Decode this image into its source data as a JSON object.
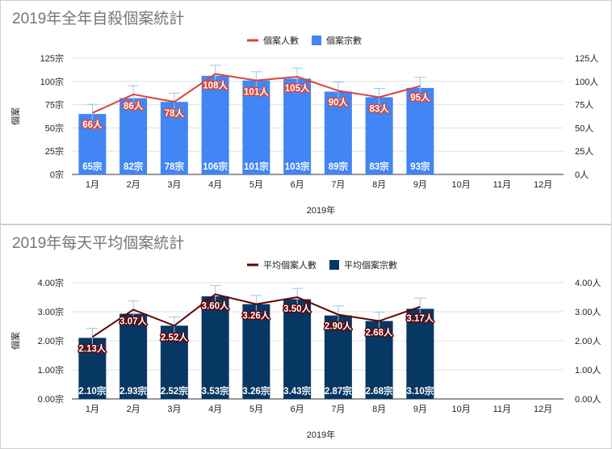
{
  "chart_data": [
    {
      "type": "bar",
      "title": "2019年全年自殺個案統計",
      "xlabel": "2019年",
      "ylabel": "個案",
      "categories": [
        "1月",
        "2月",
        "3月",
        "4月",
        "5月",
        "6月",
        "7月",
        "8月",
        "9月",
        "10月",
        "11月",
        "12月"
      ],
      "ylim": [
        0,
        125
      ],
      "yticks_left": [
        "0宗",
        "25宗",
        "50宗",
        "75宗",
        "100宗",
        "125宗"
      ],
      "yticks_right": [
        "0人",
        "25人",
        "50人",
        "75人",
        "100人",
        "125人"
      ],
      "legend_position": "top",
      "grid": true,
      "series": [
        {
          "name": "個案宗數",
          "kind": "bar",
          "color": "#4285f4",
          "values": [
            65,
            82,
            78,
            106,
            101,
            103,
            89,
            83,
            93,
            null,
            null,
            null
          ],
          "labels": [
            "65宗",
            "82宗",
            "78宗",
            "106宗",
            "101宗",
            "103宗",
            "89宗",
            "83宗",
            "93宗",
            "",
            "",
            ""
          ]
        },
        {
          "name": "個案人數",
          "kind": "line",
          "color": "#db4437",
          "values": [
            66,
            86,
            78,
            108,
            101,
            105,
            90,
            83,
            95,
            null,
            null,
            null
          ],
          "labels": [
            "66人",
            "86人",
            "78人",
            "108人",
            "101人",
            "105人",
            "90人",
            "83人",
            "95人",
            "",
            "",
            ""
          ]
        }
      ]
    },
    {
      "type": "bar",
      "title": "2019年每天平均個案統計",
      "xlabel": "2019年",
      "ylabel": "個案",
      "categories": [
        "1月",
        "2月",
        "3月",
        "4月",
        "5月",
        "6月",
        "7月",
        "8月",
        "9月",
        "10月",
        "11月",
        "12月"
      ],
      "ylim": [
        0,
        4
      ],
      "yticks_left": [
        "0.00宗",
        "1.00宗",
        "2.00宗",
        "3.00宗",
        "4.00宗"
      ],
      "yticks_right": [
        "0.00人",
        "1.00人",
        "2.00人",
        "3.00人",
        "4.00人"
      ],
      "legend_position": "top",
      "grid": true,
      "series": [
        {
          "name": "平均個案宗數",
          "kind": "bar",
          "color": "#073763",
          "values": [
            2.1,
            2.93,
            2.52,
            3.53,
            3.26,
            3.43,
            2.87,
            2.68,
            3.1,
            null,
            null,
            null
          ],
          "labels": [
            "2.10宗",
            "2.93宗",
            "2.52宗",
            "3.53宗",
            "3.26宗",
            "3.43宗",
            "2.87宗",
            "2.68宗",
            "3.10宗",
            "",
            "",
            ""
          ]
        },
        {
          "name": "平均個案人數",
          "kind": "line",
          "color": "#660000",
          "values": [
            2.13,
            3.07,
            2.52,
            3.6,
            3.26,
            3.5,
            2.9,
            2.68,
            3.17,
            null,
            null,
            null
          ],
          "labels": [
            "2.13人",
            "3.07人",
            "2.52人",
            "3.60人",
            "3.26人",
            "3.50人",
            "2.90人",
            "2.68人",
            "3.17人",
            "",
            "",
            ""
          ]
        }
      ]
    }
  ]
}
